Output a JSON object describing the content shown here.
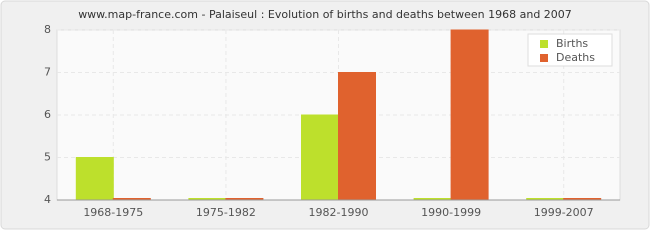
{
  "chart_data": {
    "type": "bar",
    "title": "www.map-france.com - Palaiseul : Evolution of births and deaths between 1968 and 2007",
    "categories": [
      "1968-1975",
      "1975-1982",
      "1982-1990",
      "1990-1999",
      "1999-2007"
    ],
    "series": [
      {
        "name": "Births",
        "color": "#bde02c",
        "values": [
          5,
          4,
          6,
          4,
          4
        ]
      },
      {
        "name": "Deaths",
        "color": "#e0622e",
        "values": [
          4,
          4,
          7,
          8,
          4
        ]
      }
    ],
    "ylim": [
      4,
      8
    ],
    "yticks": [
      4,
      5,
      6,
      7,
      8
    ],
    "grid": true,
    "legend": "top-right"
  }
}
